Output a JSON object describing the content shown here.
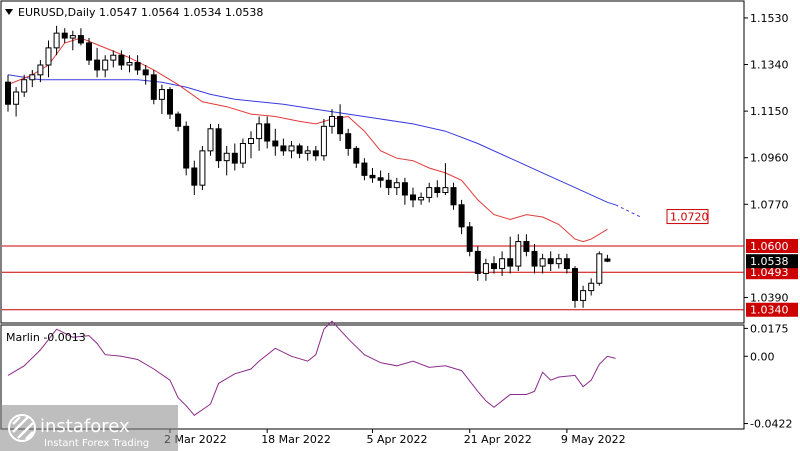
{
  "chart_data": {
    "type": "candlestick",
    "title": "EURUSD,Daily  1.0547 1.0564 1.0534 1.0538",
    "symbol": "EURUSD",
    "timeframe": "Daily",
    "ohlc_last": {
      "open": 1.0547,
      "high": 1.0564,
      "low": 1.0534,
      "close": 1.0538
    },
    "ylim": [
      1.029,
      1.1595
    ],
    "y_ticks": [
      "1.1530",
      "1.1340",
      "1.1150",
      "1.0960",
      "1.0770",
      "1.0390"
    ],
    "x_labels": [
      "2 Mar 2022",
      "18 Mar 2022",
      "5 Apr 2022",
      "21 Apr 2022",
      "9 May 2022"
    ],
    "x_label_index": [
      20,
      32,
      45,
      57,
      69
    ],
    "candles": [
      [
        1.1268,
        1.1298,
        1.1148,
        1.1178
      ],
      [
        1.1178,
        1.1248,
        1.1128,
        1.1228
      ],
      [
        1.1228,
        1.1298,
        1.1208,
        1.1278
      ],
      [
        1.1278,
        1.1318,
        1.1248,
        1.1298
      ],
      [
        1.1298,
        1.1358,
        1.1268,
        1.1338
      ],
      [
        1.1338,
        1.1438,
        1.1288,
        1.1408
      ],
      [
        1.1408,
        1.1498,
        1.1378,
        1.1468
      ],
      [
        1.1468,
        1.1488,
        1.1428,
        1.1448
      ],
      [
        1.1448,
        1.1478,
        1.1398,
        1.1458
      ],
      [
        1.1458,
        1.1488,
        1.1418,
        1.1428
      ],
      [
        1.1428,
        1.1448,
        1.1338,
        1.1358
      ],
      [
        1.1358,
        1.1408,
        1.1288,
        1.1318
      ],
      [
        1.1318,
        1.1378,
        1.1288,
        1.1358
      ],
      [
        1.1358,
        1.1398,
        1.1328,
        1.1378
      ],
      [
        1.1378,
        1.1398,
        1.1318,
        1.1338
      ],
      [
        1.1338,
        1.1378,
        1.1308,
        1.1348
      ],
      [
        1.1348,
        1.1378,
        1.1298,
        1.1318
      ],
      [
        1.1318,
        1.1338,
        1.1258,
        1.1298
      ],
      [
        1.1298,
        1.1318,
        1.1178,
        1.1198
      ],
      [
        1.1198,
        1.1258,
        1.1138,
        1.1238
      ],
      [
        1.1238,
        1.1248,
        1.1118,
        1.1138
      ],
      [
        1.1138,
        1.1148,
        1.1068,
        1.1088
      ],
      [
        1.1088,
        1.1108,
        1.0888,
        1.0918
      ],
      [
        1.0918,
        1.0948,
        1.0808,
        1.0848
      ],
      [
        1.0848,
        1.1008,
        1.0828,
        1.0988
      ],
      [
        1.0988,
        1.1098,
        1.0968,
        1.1078
      ],
      [
        1.1078,
        1.1098,
        1.0918,
        1.0948
      ],
      [
        1.0948,
        1.1008,
        1.0888,
        1.0978
      ],
      [
        1.0978,
        1.1018,
        1.0908,
        1.0938
      ],
      [
        1.0938,
        1.1038,
        1.0918,
        1.1018
      ],
      [
        1.1018,
        1.1068,
        1.0958,
        1.1038
      ],
      [
        1.1038,
        1.1128,
        1.0988,
        1.1098
      ],
      [
        1.1098,
        1.1128,
        1.0998,
        1.1028
      ],
      [
        1.1028,
        1.1078,
        1.0968,
        1.1008
      ],
      [
        1.1008,
        1.1038,
        1.0968,
        1.0988
      ],
      [
        1.0988,
        1.1028,
        1.0958,
        1.1008
      ],
      [
        1.1008,
        1.1018,
        1.0958,
        1.0978
      ],
      [
        1.0978,
        1.1008,
        1.0948,
        1.0988
      ],
      [
        1.0988,
        1.1008,
        1.0948,
        1.0968
      ],
      [
        1.0968,
        1.1118,
        1.0948,
        1.1088
      ],
      [
        1.1088,
        1.1158,
        1.1058,
        1.1128
      ],
      [
        1.1128,
        1.1178,
        1.1028,
        1.1058
      ],
      [
        1.1058,
        1.1078,
        1.0968,
        1.0998
      ],
      [
        1.0998,
        1.1008,
        1.0918,
        1.0938
      ],
      [
        1.0938,
        1.0958,
        1.0868,
        1.0888
      ],
      [
        1.0888,
        1.0918,
        1.0858,
        1.0878
      ],
      [
        1.0878,
        1.0908,
        1.0838,
        1.0868
      ],
      [
        1.0868,
        1.0898,
        1.0808,
        1.0838
      ],
      [
        1.0838,
        1.0878,
        1.0808,
        1.0858
      ],
      [
        1.0858,
        1.0878,
        1.0768,
        1.0808
      ],
      [
        1.0808,
        1.0838,
        1.0758,
        1.0788
      ],
      [
        1.0788,
        1.0818,
        1.0768,
        1.0798
      ],
      [
        1.0798,
        1.0858,
        1.0778,
        1.0838
      ],
      [
        1.0838,
        1.0868,
        1.0798,
        1.0818
      ],
      [
        1.0818,
        1.0938,
        1.0808,
        1.0838
      ],
      [
        1.0838,
        1.0858,
        1.0748,
        1.0768
      ],
      [
        1.0768,
        1.0788,
        1.0648,
        1.0678
      ],
      [
        1.0678,
        1.0698,
        1.0558,
        1.0578
      ],
      [
        1.0578,
        1.0598,
        1.0458,
        1.0488
      ],
      [
        1.0488,
        1.0548,
        1.0458,
        1.0528
      ],
      [
        1.0528,
        1.0558,
        1.0488,
        1.0508
      ],
      [
        1.0508,
        1.0578,
        1.0478,
        1.0548
      ],
      [
        1.0548,
        1.0638,
        1.0488,
        1.0518
      ],
      [
        1.0518,
        1.0648,
        1.0498,
        1.0618
      ],
      [
        1.0618,
        1.0648,
        1.0558,
        1.0578
      ],
      [
        1.0578,
        1.0608,
        1.0488,
        1.0518
      ],
      [
        1.0518,
        1.0568,
        1.0488,
        1.0548
      ],
      [
        1.0548,
        1.0578,
        1.0498,
        1.0528
      ],
      [
        1.0528,
        1.0568,
        1.0508,
        1.0548
      ],
      [
        1.0548,
        1.0568,
        1.0488,
        1.0508
      ],
      [
        1.0508,
        1.0518,
        1.0348,
        1.0378
      ],
      [
        1.0378,
        1.0438,
        1.0348,
        1.0418
      ],
      [
        1.0418,
        1.0468,
        1.0398,
        1.0448
      ],
      [
        1.0448,
        1.0578,
        1.0438,
        1.0568
      ],
      [
        1.0547,
        1.0564,
        1.0534,
        1.0538
      ]
    ],
    "ma_red": [
      [
        0,
        1.1258
      ],
      [
        3,
        1.1298
      ],
      [
        5,
        1.1338
      ],
      [
        7,
        1.1428
      ],
      [
        9,
        1.1448
      ],
      [
        12,
        1.1408
      ],
      [
        15,
        1.1368
      ],
      [
        18,
        1.1318
      ],
      [
        21,
        1.1258
      ],
      [
        24,
        1.1188
      ],
      [
        27,
        1.1168
      ],
      [
        30,
        1.1138
      ],
      [
        33,
        1.1128
      ],
      [
        36,
        1.1108
      ],
      [
        38,
        1.1098
      ],
      [
        40,
        1.1118
      ],
      [
        42,
        1.1128
      ],
      [
        44,
        1.1068
      ],
      [
        46,
        1.0988
      ],
      [
        48,
        1.0958
      ],
      [
        50,
        1.0948
      ],
      [
        52,
        1.0918
      ],
      [
        54,
        1.0898
      ],
      [
        56,
        1.0868
      ],
      [
        58,
        1.0788
      ],
      [
        60,
        1.0728
      ],
      [
        62,
        1.0708
      ],
      [
        64,
        1.0728
      ],
      [
        66,
        1.0718
      ],
      [
        68,
        1.0688
      ],
      [
        70,
        1.0628
      ],
      [
        71,
        1.0618
      ],
      [
        72,
        1.0628
      ],
      [
        74,
        1.0668
      ]
    ],
    "ma_blue": [
      [
        0,
        1.1298
      ],
      [
        4,
        1.1278
      ],
      [
        8,
        1.1278
      ],
      [
        13,
        1.1278
      ],
      [
        16,
        1.1278
      ],
      [
        19,
        1.1268
      ],
      [
        22,
        1.1248
      ],
      [
        25,
        1.1218
      ],
      [
        28,
        1.1198
      ],
      [
        31,
        1.1188
      ],
      [
        34,
        1.1178
      ],
      [
        38,
        1.1158
      ],
      [
        42,
        1.1138
      ],
      [
        46,
        1.1118
      ],
      [
        50,
        1.1098
      ],
      [
        54,
        1.1068
      ],
      [
        58,
        1.1018
      ],
      [
        62,
        1.0958
      ],
      [
        66,
        1.0898
      ],
      [
        70,
        1.0838
      ],
      [
        74,
        1.0778
      ],
      [
        75,
        1.0768
      ]
    ],
    "ma_blue_projection": [
      [
        75,
        1.0768
      ],
      [
        78,
        1.072
      ]
    ],
    "levels": [
      {
        "value": 1.06,
        "label": "1.0600",
        "color": "#cc0000"
      },
      {
        "value": 1.0493,
        "label": "1.0493",
        "color": "#cc0000"
      },
      {
        "value": 1.034,
        "label": "1.0340",
        "color": "#cc0000"
      }
    ],
    "price_label": {
      "value": 1.0538,
      "label": "1.0538",
      "color": "#000000"
    },
    "target_label": {
      "value": 1.072,
      "label": "1.0720",
      "color": "#cc0000"
    },
    "indicator": {
      "name": "Marlin",
      "value_text": "Marlin -0.0013",
      "ylim": [
        -0.045,
        0.019
      ],
      "y_ticks": [
        "0.0175",
        "0.00",
        "-0.0422"
      ],
      "series": [
        [
          0,
          -0.012
        ],
        [
          2,
          -0.006
        ],
        [
          4,
          0.004
        ],
        [
          6,
          0.017
        ],
        [
          8,
          0.012
        ],
        [
          10,
          0.013
        ],
        [
          11,
          0.008
        ],
        [
          12,
          0.001
        ],
        [
          14,
          0.0
        ],
        [
          16,
          -0.002
        ],
        [
          18,
          -0.008
        ],
        [
          20,
          -0.015
        ],
        [
          21,
          -0.026
        ],
        [
          22,
          -0.031
        ],
        [
          23,
          -0.037
        ],
        [
          25,
          -0.03
        ],
        [
          26,
          -0.017
        ],
        [
          28,
          -0.011
        ],
        [
          30,
          -0.008
        ],
        [
          31,
          -0.003
        ],
        [
          33,
          0.005
        ],
        [
          35,
          0.0
        ],
        [
          37,
          -0.003
        ],
        [
          38,
          0.001
        ],
        [
          39,
          0.017
        ],
        [
          40,
          0.022
        ],
        [
          42,
          0.011
        ],
        [
          44,
          0.001
        ],
        [
          46,
          -0.004
        ],
        [
          48,
          -0.006
        ],
        [
          50,
          -0.003
        ],
        [
          52,
          -0.007
        ],
        [
          54,
          -0.006
        ],
        [
          56,
          -0.009
        ],
        [
          58,
          -0.022
        ],
        [
          59,
          -0.028
        ],
        [
          60,
          -0.032
        ],
        [
          62,
          -0.024
        ],
        [
          64,
          -0.024
        ],
        [
          65,
          -0.022
        ],
        [
          66,
          -0.01
        ],
        [
          67,
          -0.015
        ],
        [
          68,
          -0.013
        ],
        [
          70,
          -0.012
        ],
        [
          71,
          -0.019
        ],
        [
          72,
          -0.015
        ],
        [
          73,
          -0.005
        ],
        [
          74,
          0.0
        ],
        [
          75,
          -0.0013
        ]
      ],
      "color": "#8b2b8b"
    },
    "colors": {
      "bull": "#ffffff",
      "bear": "#000000",
      "ma_red": "#e23a3a",
      "ma_blue": "#3a3ae0"
    },
    "grid": false
  },
  "watermark": {
    "brand": "instaforex",
    "tagline": "Instant Forex Trading"
  }
}
